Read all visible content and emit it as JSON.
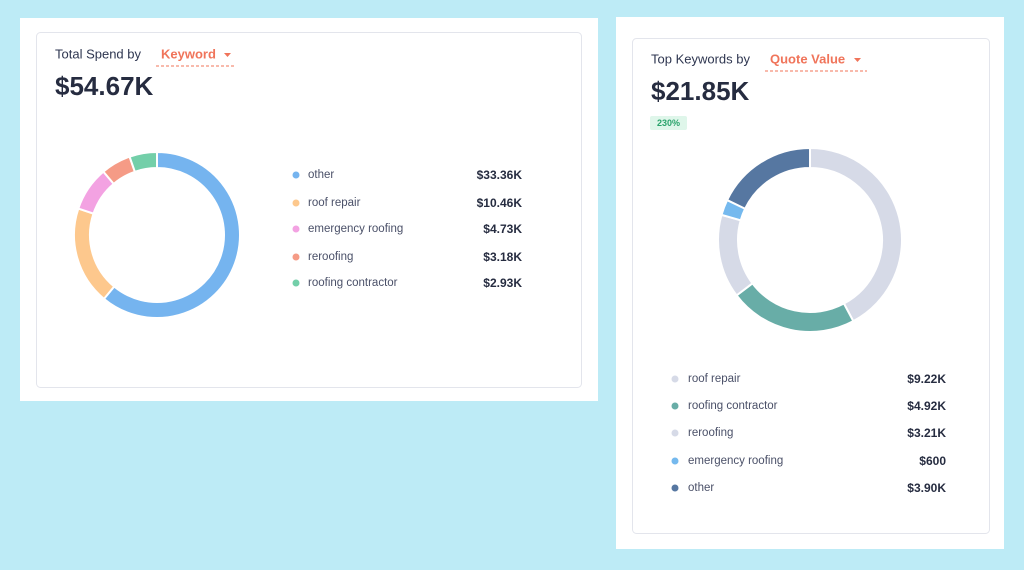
{
  "chart_data": [
    {
      "type": "donut",
      "title": "Total Spend by",
      "dropdown": "Keyword",
      "total": "$54.67K",
      "categories": [
        "other",
        "roof repair",
        "emergency roofing",
        "reroofing",
        "roofing contractor"
      ],
      "values": [
        33360,
        10460,
        4730,
        3180,
        2930
      ],
      "value_labels": [
        "$33.36K",
        "$10.46K",
        "$4.73K",
        "$3.18K",
        "$2.93K"
      ],
      "colors": [
        "#75b4ef",
        "#fdc88d",
        "#f3a2e2",
        "#f59b86",
        "#73cfa9"
      ]
    },
    {
      "type": "donut",
      "title": "Top Keywords by",
      "dropdown": "Quote Value",
      "total": "$21.85K",
      "badge": "230%",
      "categories": [
        "roof repair",
        "roofing contractor",
        "reroofing",
        "emergency roofing",
        "other"
      ],
      "values": [
        9220,
        4920,
        3210,
        600,
        3900
      ],
      "value_labels": [
        "$9.22K",
        "$4.92K",
        "$3.21K",
        "$600",
        "$3.90K"
      ],
      "colors": [
        "#d6dae7",
        "#68ada7",
        "#d6dae7",
        "#75b9ee",
        "#5677a1"
      ]
    }
  ]
}
